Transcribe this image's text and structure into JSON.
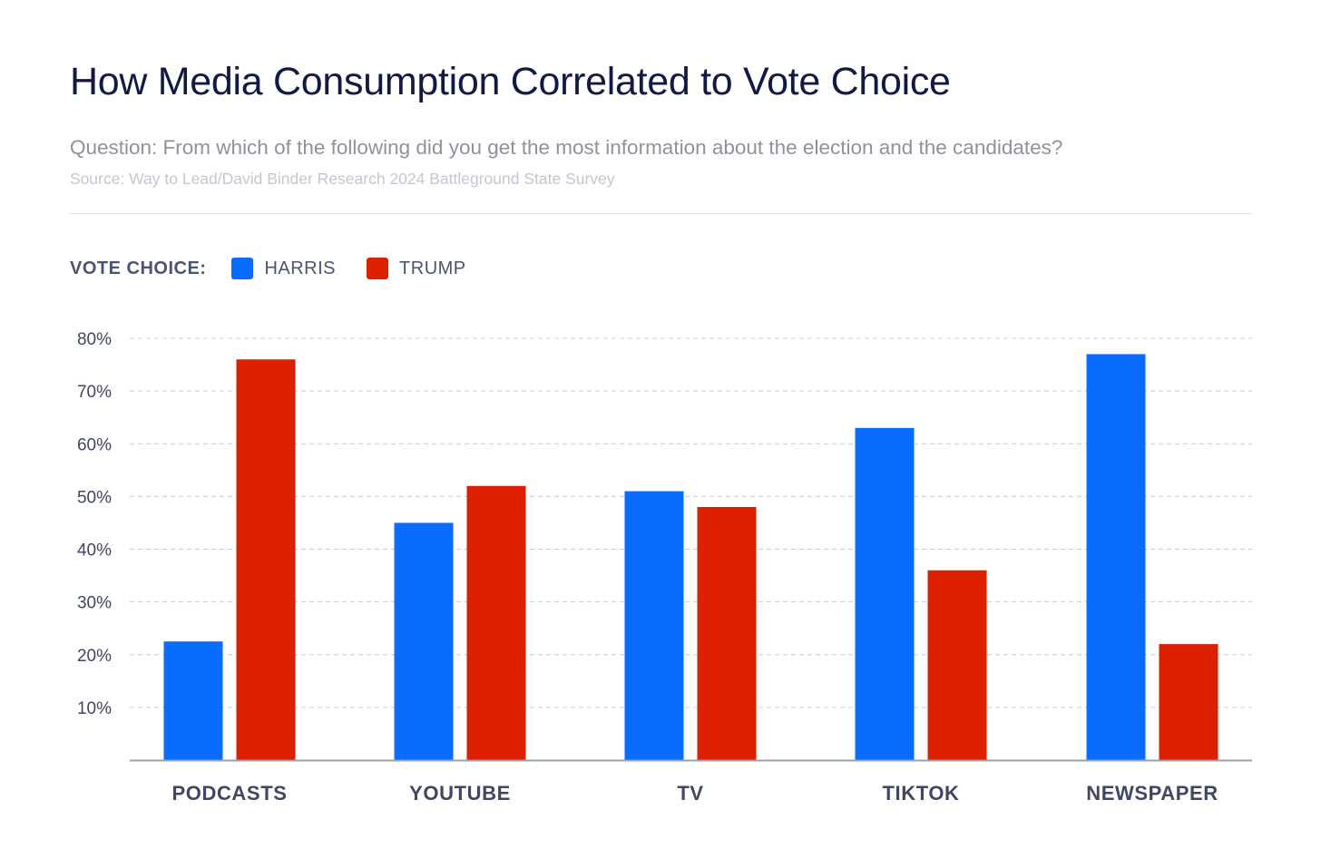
{
  "header": {
    "title": "How Media Consumption Correlated to Vote Choice",
    "question": "Question: From which of the following did you get the most information about the election and the candidates?",
    "source": "Source: Way to Lead/David Binder Research 2024 Battleground State Survey"
  },
  "legend": {
    "title": "VOTE CHOICE:",
    "items": [
      {
        "label": "HARRIS",
        "color": "#0a6cff"
      },
      {
        "label": "TRUMP",
        "color": "#dd2100"
      }
    ]
  },
  "chart_data": {
    "type": "bar",
    "categories": [
      "PODCASTS",
      "YOUTUBE",
      "TV",
      "TIKTOK",
      "NEWSPAPER"
    ],
    "series": [
      {
        "name": "HARRIS",
        "color": "#0a6cff",
        "values": [
          22.5,
          45,
          51,
          63,
          77
        ]
      },
      {
        "name": "TRUMP",
        "color": "#dd2100",
        "values": [
          76,
          52,
          48,
          36,
          22
        ]
      }
    ],
    "y_ticks": [
      "10%",
      "20%",
      "30%",
      "40%",
      "50%",
      "60%",
      "70%",
      "80%"
    ],
    "ylim": [
      0,
      80
    ],
    "grid": true,
    "grid_style": "dashed",
    "legend_position": "top-left"
  }
}
